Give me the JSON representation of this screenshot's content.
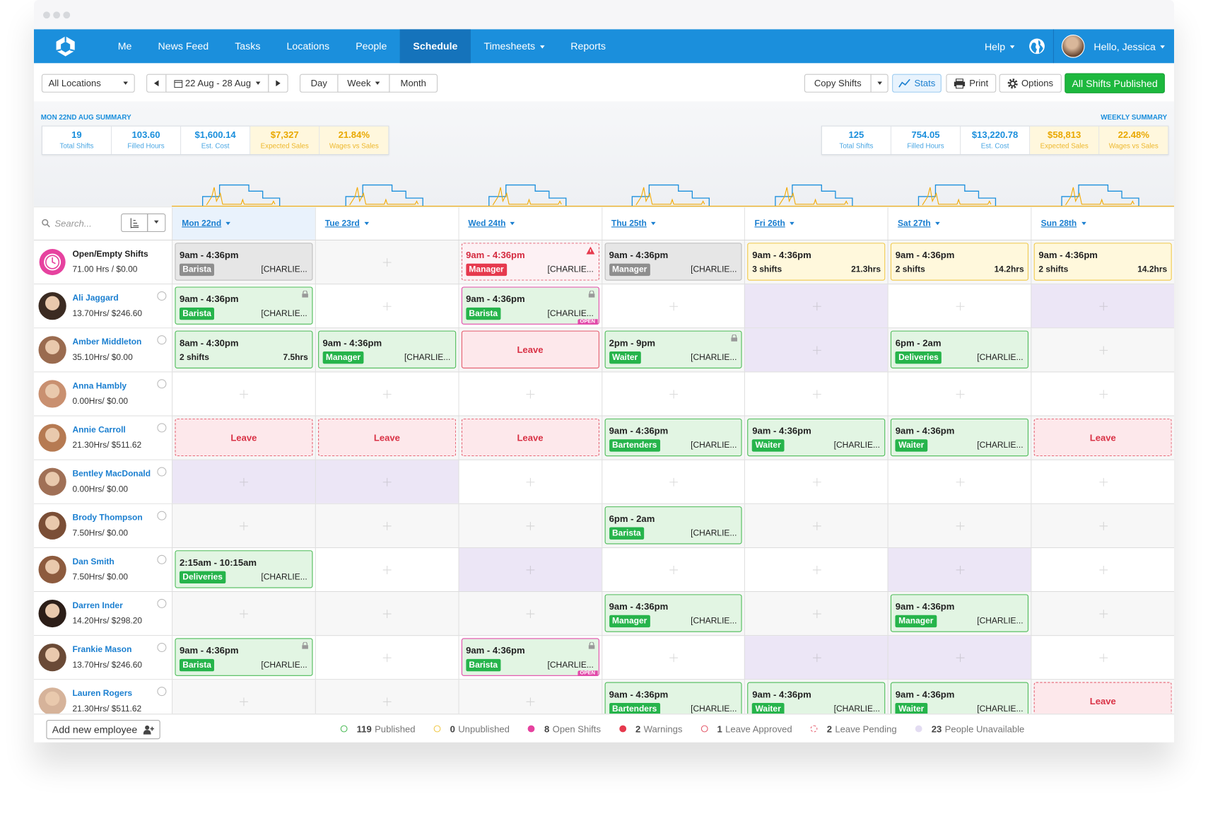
{
  "nav": {
    "items": [
      "Me",
      "News Feed",
      "Tasks",
      "Locations",
      "People",
      "Schedule",
      "Timesheets",
      "Reports"
    ],
    "active_index": 5,
    "dropdown_index": 6,
    "help": "Help",
    "greeting": "Hello, Jessica"
  },
  "toolbar": {
    "location": "All Locations",
    "date_range": "22 Aug - 28 Aug",
    "views": [
      "Day",
      "Week",
      "Month"
    ],
    "active_view_index": 1,
    "copy": "Copy Shifts",
    "stats": "Stats",
    "print": "Print",
    "options": "Options",
    "publish": "All Shifts Published"
  },
  "summary": {
    "day": {
      "title": "MON 22ND AUG SUMMARY",
      "stats": [
        {
          "value": "19",
          "label": "Total Shifts"
        },
        {
          "value": "103.60",
          "label": "Filled Hours"
        },
        {
          "value": "$1,600.14",
          "label": "Est. Cost"
        },
        {
          "value": "$7,327",
          "label": "Expected Sales",
          "highlight": true
        },
        {
          "value": "21.84%",
          "label": "Wages vs Sales",
          "highlight": true
        }
      ]
    },
    "week": {
      "title": "WEEKLY SUMMARY",
      "stats": [
        {
          "value": "125",
          "label": "Total Shifts"
        },
        {
          "value": "754.05",
          "label": "Filled Hours"
        },
        {
          "value": "$13,220.78",
          "label": "Est. Cost"
        },
        {
          "value": "$58,813",
          "label": "Expected Sales",
          "highlight": true
        },
        {
          "value": "22.48%",
          "label": "Wages vs Sales",
          "highlight": true
        }
      ]
    }
  },
  "schedule": {
    "search": "Search...",
    "days": [
      "Mon 22nd",
      "Tue 23rd",
      "Wed 24th",
      "Thu 25th",
      "Fri 26th",
      "Sat 27th",
      "Sun 28th"
    ],
    "today_index": 0,
    "rows": [
      {
        "name": "Open/Empty Shifts",
        "stats": "71.00 Hrs / $0.00",
        "open_row": true,
        "cells": [
          {
            "type": "shift",
            "status": "empty",
            "time": "9am - 4:36pm",
            "role": "Barista",
            "location": "[CHARLIE..."
          },
          null,
          {
            "type": "shift",
            "status": "warning",
            "time": "9am - 4:36pm",
            "role": "Manager",
            "location": "[CHARLIE..."
          },
          {
            "type": "shift",
            "status": "empty",
            "time": "9am - 4:36pm",
            "role": "Manager",
            "location": "[CHARLIE..."
          },
          {
            "type": "shift",
            "status": "unpublished",
            "time": "9am - 4:36pm",
            "shifts": "3 shifts",
            "hours": "21.3hrs"
          },
          {
            "type": "shift",
            "status": "unpublished",
            "time": "9am - 4:36pm",
            "shifts": "2 shifts",
            "hours": "14.2hrs"
          },
          {
            "type": "shift",
            "status": "unpublished",
            "time": "9am - 4:36pm",
            "shifts": "2 shifts",
            "hours": "14.2hrs"
          }
        ]
      },
      {
        "name": "Ali Jaggard",
        "stats": "13.70Hrs/ $246.60",
        "cells": [
          {
            "type": "shift",
            "status": "published",
            "time": "9am - 4:36pm",
            "role": "Barista",
            "location": "[CHARLIE...",
            "locked": true
          },
          null,
          {
            "type": "shift",
            "status": "open",
            "time": "9am - 4:36pm",
            "role": "Barista",
            "location": "[CHARLIE...",
            "locked": true,
            "tag": "OPEN"
          },
          null,
          {
            "type": "unavailable"
          },
          null,
          {
            "type": "unavailable"
          }
        ]
      },
      {
        "name": "Amber Middleton",
        "stats": "35.10Hrs/ $0.00",
        "cells": [
          {
            "type": "shift",
            "status": "published",
            "time": "8am - 4:30pm",
            "shifts": "2 shifts",
            "hours": "7.5hrs"
          },
          {
            "type": "shift",
            "status": "published",
            "time": "9am - 4:36pm",
            "role": "Manager",
            "location": "[CHARLIE..."
          },
          {
            "type": "leave",
            "status": "approved",
            "text": "Leave"
          },
          {
            "type": "shift",
            "status": "published",
            "time": "2pm - 9pm",
            "role": "Waiter",
            "location": "[CHARLIE...",
            "locked": true
          },
          {
            "type": "unavailable"
          },
          {
            "type": "shift",
            "status": "published",
            "time": "6pm - 2am",
            "role": "Deliveries",
            "location": "[CHARLIE..."
          },
          null
        ]
      },
      {
        "name": "Anna Hambly",
        "stats": "0.00Hrs/ $0.00",
        "cells": [
          null,
          null,
          null,
          null,
          null,
          null,
          null
        ]
      },
      {
        "name": "Annie Carroll",
        "stats": "21.30Hrs/ $511.62",
        "cells": [
          {
            "type": "leave",
            "status": "pending",
            "text": "Leave"
          },
          {
            "type": "leave",
            "status": "pending",
            "text": "Leave"
          },
          {
            "type": "leave",
            "status": "pending",
            "text": "Leave"
          },
          {
            "type": "shift",
            "status": "published",
            "time": "9am - 4:36pm",
            "role": "Bartenders",
            "location": "[CHARLIE..."
          },
          {
            "type": "shift",
            "status": "published",
            "time": "9am - 4:36pm",
            "role": "Waiter",
            "location": "[CHARLIE..."
          },
          {
            "type": "shift",
            "status": "published",
            "time": "9am - 4:36pm",
            "role": "Waiter",
            "location": "[CHARLIE..."
          },
          {
            "type": "leave",
            "status": "pending",
            "text": "Leave"
          }
        ]
      },
      {
        "name": "Bentley MacDonald",
        "stats": "0.00Hrs/ $0.00",
        "cells": [
          {
            "type": "unavailable"
          },
          {
            "type": "unavailable"
          },
          null,
          null,
          null,
          null,
          null
        ]
      },
      {
        "name": "Brody Thompson",
        "stats": "7.50Hrs/ $0.00",
        "cells": [
          null,
          null,
          null,
          {
            "type": "shift",
            "status": "published",
            "time": "6pm - 2am",
            "role": "Barista",
            "location": "[CHARLIE..."
          },
          null,
          null,
          null
        ]
      },
      {
        "name": "Dan Smith",
        "stats": "7.50Hrs/ $0.00",
        "cells": [
          {
            "type": "shift",
            "status": "published",
            "time": "2:15am - 10:15am",
            "role": "Deliveries",
            "location": "[CHARLIE..."
          },
          null,
          {
            "type": "unavailable"
          },
          null,
          null,
          {
            "type": "unavailable"
          },
          null
        ]
      },
      {
        "name": "Darren Inder",
        "stats": "14.20Hrs/ $298.20",
        "cells": [
          null,
          null,
          null,
          {
            "type": "shift",
            "status": "published",
            "time": "9am - 4:36pm",
            "role": "Manager",
            "location": "[CHARLIE..."
          },
          null,
          {
            "type": "shift",
            "status": "published",
            "time": "9am - 4:36pm",
            "role": "Manager",
            "location": "[CHARLIE..."
          },
          null
        ]
      },
      {
        "name": "Frankie Mason",
        "stats": "13.70Hrs/ $246.60",
        "cells": [
          {
            "type": "shift",
            "status": "published",
            "time": "9am - 4:36pm",
            "role": "Barista",
            "location": "[CHARLIE...",
            "locked": true
          },
          null,
          {
            "type": "shift",
            "status": "open",
            "time": "9am - 4:36pm",
            "role": "Barista",
            "location": "[CHARLIE...",
            "locked": true,
            "tag": "OPEN"
          },
          null,
          {
            "type": "unavailable"
          },
          {
            "type": "unavailable"
          },
          null
        ]
      },
      {
        "name": "Lauren Rogers",
        "stats": "21.30Hrs/ $511.62",
        "cells": [
          null,
          null,
          null,
          {
            "type": "shift",
            "status": "published",
            "time": "9am - 4:36pm",
            "role": "Bartenders",
            "location": "[CHARLIE..."
          },
          {
            "type": "shift",
            "status": "published",
            "time": "9am - 4:36pm",
            "role": "Waiter",
            "location": "[CHARLIE..."
          },
          {
            "type": "shift",
            "status": "published",
            "time": "9am - 4:36pm",
            "role": "Waiter",
            "location": "[CHARLIE..."
          },
          {
            "type": "leave",
            "status": "pending",
            "text": "Leave"
          }
        ]
      }
    ]
  },
  "footer": {
    "add_employee": "Add new employee",
    "legend": [
      {
        "count": "119",
        "label": "Published",
        "style": "published"
      },
      {
        "count": "0",
        "label": "Unpublished",
        "style": "unpublished"
      },
      {
        "count": "8",
        "label": "Open Shifts",
        "style": "open"
      },
      {
        "count": "2",
        "label": "Warnings",
        "style": "warning"
      },
      {
        "count": "1",
        "label": "Leave Approved",
        "style": "leave-approved"
      },
      {
        "count": "2",
        "label": "Leave Pending",
        "style": "leave-pending"
      },
      {
        "count": "23",
        "label": "People Unavailable",
        "style": "unavailable"
      }
    ]
  }
}
